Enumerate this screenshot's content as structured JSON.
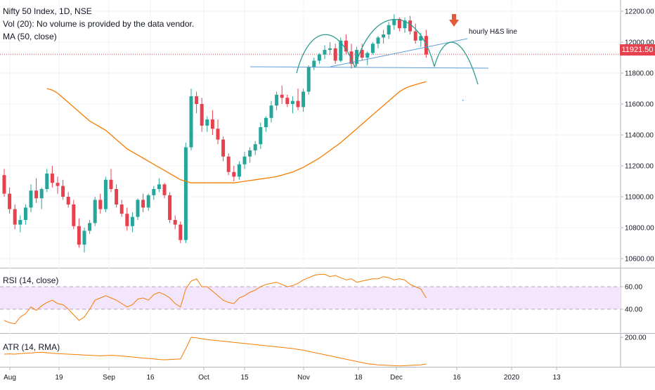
{
  "header": {
    "title": "Nifty 50 Index, 1D, NSE",
    "vol": "Vol (20): No volume is provided by the data vendor.",
    "ma": "MA (50, close)"
  },
  "last_price_label": "11921.50",
  "annotation": "hourly H&S line",
  "rsi_label": "RSI (14, close)",
  "atr_label": "ATR (14, RMA)",
  "colors": {
    "up": "#26a69a",
    "down": "#e8414e",
    "ma": "#f57c00",
    "rsi": "#f57c00",
    "atr": "#f57c00",
    "pattern": "#2a9d8f",
    "trendline": "#5b9bd5",
    "arrow": "#e25a3a",
    "rsi_band": "#f3e5fb"
  },
  "chart_data": [
    {
      "type": "candlestick",
      "title": "Nifty 50 Index, 1D, NSE",
      "y_axis_ticks": [
        10600,
        10800,
        11000,
        11200,
        11400,
        11600,
        11800,
        12000,
        12200
      ],
      "x_axis_ticks": [
        "Aug",
        "19",
        "Sep",
        "16",
        "Oct",
        "15",
        "Nov",
        "18",
        "Dec",
        "16",
        "2020",
        "13"
      ],
      "ylim": [
        10540,
        12260
      ],
      "last_price": 11921.5,
      "ohlc": [
        [
          11140,
          11180,
          11000,
          11020
        ],
        [
          11020,
          11060,
          10890,
          10920
        ],
        [
          10920,
          10950,
          10790,
          10820
        ],
        [
          10820,
          10880,
          10770,
          10850
        ],
        [
          10850,
          10950,
          10820,
          10930
        ],
        [
          10930,
          11080,
          10900,
          11040
        ],
        [
          11040,
          11120,
          10960,
          10990
        ],
        [
          10990,
          11060,
          10920,
          11050
        ],
        [
          11050,
          11180,
          11030,
          11150
        ],
        [
          11150,
          11200,
          11060,
          11090
        ],
        [
          11090,
          11130,
          11020,
          11070
        ],
        [
          11070,
          11110,
          10980,
          11000
        ],
        [
          11000,
          11030,
          10930,
          10950
        ],
        [
          10950,
          10980,
          10790,
          10810
        ],
        [
          10810,
          10860,
          10670,
          10690
        ],
        [
          10690,
          10800,
          10640,
          10780
        ],
        [
          10780,
          10850,
          10760,
          10830
        ],
        [
          10830,
          11000,
          10810,
          10980
        ],
        [
          10980,
          11020,
          10890,
          10920
        ],
        [
          10920,
          11130,
          10900,
          11110
        ],
        [
          11110,
          11180,
          11030,
          11050
        ],
        [
          11050,
          11080,
          10930,
          10950
        ],
        [
          10950,
          10980,
          10870,
          10890
        ],
        [
          10890,
          10930,
          10780,
          10810
        ],
        [
          10810,
          10900,
          10770,
          10870
        ],
        [
          10870,
          10990,
          10850,
          10980
        ],
        [
          10980,
          11020,
          10900,
          10930
        ],
        [
          10930,
          11020,
          10910,
          11010
        ],
        [
          11010,
          11070,
          10980,
          11050
        ],
        [
          11050,
          11120,
          11030,
          11080
        ],
        [
          11080,
          11090,
          10990,
          11010
        ],
        [
          11010,
          11030,
          10830,
          10850
        ],
        [
          10850,
          10880,
          10790,
          10820
        ],
        [
          10820,
          10840,
          10700,
          10720
        ],
        [
          10720,
          11350,
          10700,
          11320
        ],
        [
          11320,
          11700,
          11300,
          11650
        ],
        [
          11650,
          11680,
          11540,
          11600
        ],
        [
          11600,
          11640,
          11420,
          11460
        ],
        [
          11460,
          11520,
          11420,
          11500
        ],
        [
          11500,
          11560,
          11400,
          11440
        ],
        [
          11440,
          11500,
          11340,
          11370
        ],
        [
          11370,
          11390,
          11230,
          11260
        ],
        [
          11260,
          11280,
          11140,
          11160
        ],
        [
          11160,
          11200,
          11100,
          11130
        ],
        [
          11130,
          11230,
          11110,
          11210
        ],
        [
          11210,
          11290,
          11180,
          11260
        ],
        [
          11260,
          11320,
          11220,
          11300
        ],
        [
          11300,
          11360,
          11270,
          11340
        ],
        [
          11340,
          11480,
          11310,
          11450
        ],
        [
          11450,
          11520,
          11420,
          11510
        ],
        [
          11510,
          11620,
          11480,
          11590
        ],
        [
          11590,
          11680,
          11560,
          11660
        ],
        [
          11660,
          11720,
          11600,
          11640
        ],
        [
          11640,
          11660,
          11580,
          11600
        ],
        [
          11600,
          11650,
          11540,
          11620
        ],
        [
          11620,
          11700,
          11560,
          11580
        ],
        [
          11580,
          11700,
          11550,
          11680
        ],
        [
          11680,
          11850,
          11660,
          11840
        ],
        [
          11840,
          11900,
          11820,
          11880
        ],
        [
          11880,
          11930,
          11860,
          11920
        ],
        [
          11920,
          11980,
          11890,
          11950
        ],
        [
          11950,
          12000,
          11920,
          11960
        ],
        [
          11960,
          11990,
          11860,
          11880
        ],
        [
          11880,
          12030,
          11870,
          12010
        ],
        [
          12010,
          12050,
          11920,
          11940
        ],
        [
          11940,
          11990,
          11830,
          11860
        ],
        [
          11860,
          11970,
          11840,
          11950
        ],
        [
          11950,
          11990,
          11880,
          11900
        ],
        [
          11900,
          11940,
          11850,
          11930
        ],
        [
          11930,
          12000,
          11920,
          11990
        ],
        [
          11990,
          12040,
          11960,
          12030
        ],
        [
          12030,
          12080,
          11990,
          12050
        ],
        [
          12050,
          12130,
          12020,
          12110
        ],
        [
          12110,
          12180,
          12080,
          12150
        ],
        [
          12150,
          12160,
          12070,
          12090
        ],
        [
          12090,
          12160,
          12060,
          12140
        ],
        [
          12140,
          12170,
          12050,
          12070
        ],
        [
          12070,
          12120,
          11990,
          12010
        ],
        [
          12010,
          12060,
          11970,
          12040
        ],
        [
          12040,
          12080,
          11900,
          11920
        ]
      ],
      "ma50": [
        11700,
        11690,
        11670,
        11640,
        11610,
        11580,
        11550,
        11520,
        11490,
        11470,
        11450,
        11430,
        11400,
        11370,
        11340,
        11310,
        11290,
        11270,
        11250,
        11230,
        11210,
        11190,
        11170,
        11150,
        11130,
        11110,
        11100,
        11090,
        11090,
        11090,
        11090,
        11090,
        11090,
        11090,
        11090,
        11090,
        11095,
        11100,
        11105,
        11110,
        11115,
        11120,
        11125,
        11130,
        11140,
        11150,
        11160,
        11175,
        11190,
        11210,
        11230,
        11250,
        11275,
        11300,
        11325,
        11350,
        11380,
        11410,
        11440,
        11470,
        11500,
        11530,
        11560,
        11590,
        11620,
        11650,
        11680,
        11700,
        11715,
        11725,
        11735,
        11745
      ],
      "ma50_start_index": 8
    },
    {
      "type": "line",
      "title": "RSI (14, close)",
      "y_axis_ticks": [
        40,
        60
      ],
      "band": [
        40,
        60
      ],
      "ylim": [
        20,
        80
      ],
      "values": [
        30,
        28,
        27,
        33,
        36,
        42,
        39,
        43,
        46,
        48,
        45,
        44,
        40,
        35,
        30,
        33,
        40,
        48,
        50,
        52,
        50,
        48,
        45,
        42,
        44,
        49,
        50,
        48,
        53,
        55,
        53,
        50,
        45,
        42,
        58,
        65,
        67,
        60,
        60,
        56,
        52,
        48,
        46,
        45,
        50,
        52,
        55,
        57,
        60,
        62,
        63,
        64,
        62,
        60,
        61,
        63,
        66,
        68,
        70,
        71,
        71,
        69,
        70,
        68,
        66,
        67,
        64,
        65,
        66,
        67,
        67,
        69,
        68,
        66,
        67,
        66,
        62,
        60,
        58,
        50
      ]
    },
    {
      "type": "line",
      "title": "ATR (14, RMA)",
      "y_axis_ticks": [
        200
      ],
      "ylim": [
        50,
        220
      ],
      "values": [
        140,
        141,
        140,
        142,
        143,
        144,
        146,
        147,
        145,
        143,
        142,
        141,
        140,
        139,
        138,
        137,
        136,
        135,
        134,
        135,
        136,
        135,
        133,
        132,
        130,
        128,
        126,
        125,
        123,
        121,
        120,
        121,
        122,
        123,
        160,
        200,
        198,
        195,
        192,
        190,
        188,
        186,
        184,
        182,
        180,
        178,
        176,
        174,
        172,
        170,
        168,
        166,
        164,
        162,
        160,
        157,
        154,
        150,
        146,
        142,
        138,
        134,
        130,
        126,
        122,
        118,
        114,
        110,
        106,
        104,
        102,
        101,
        100,
        99,
        98,
        99,
        100,
        101,
        102,
        105
      ]
    }
  ]
}
